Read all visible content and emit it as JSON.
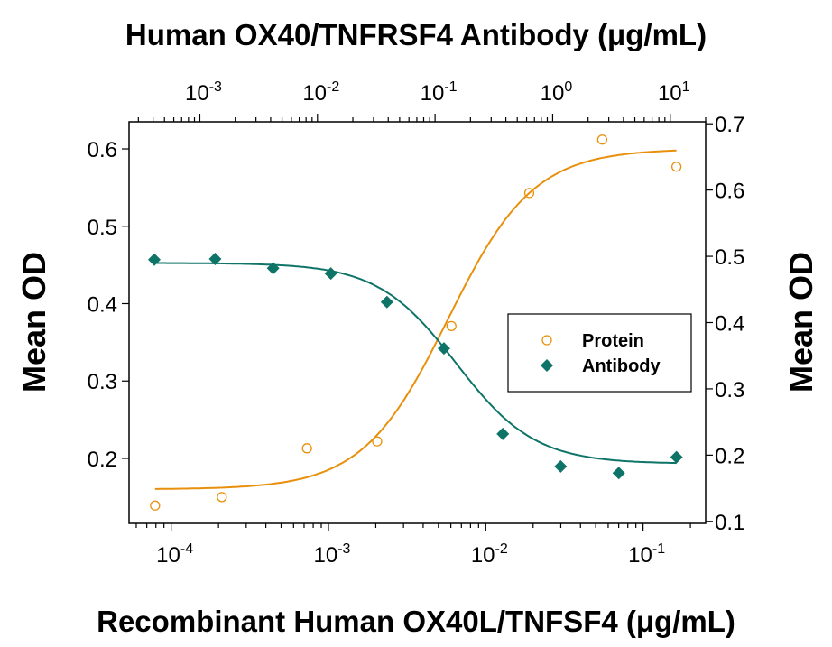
{
  "chart_data": {
    "type": "scatter",
    "title_top": "Human OX40/TNFRSF4 Antibody (μg/mL)",
    "xlabel_bottom": "Recombinant Human OX40L/TNFSF4 (μg/mL)",
    "ylabel_left": "Mean OD",
    "ylabel_right": "Mean OD",
    "x_bottom": {
      "scale": "log",
      "range": [
        5.4e-05,
        0.25
      ],
      "ticks": [
        0.0001,
        0.001,
        0.01,
        0.1
      ],
      "tick_labels": [
        [
          "10",
          "-4"
        ],
        [
          "10",
          "-3"
        ],
        [
          "10",
          "-2"
        ],
        [
          "10",
          "-1"
        ]
      ]
    },
    "x_top": {
      "scale": "log",
      "range": [
        0.00025,
        20
      ],
      "ticks": [
        0.001,
        0.01,
        0.1,
        1,
        10
      ],
      "tick_labels": [
        [
          "10",
          "-3"
        ],
        [
          "10",
          "-2"
        ],
        [
          "10",
          "-1"
        ],
        [
          "10",
          "0"
        ],
        [
          "10",
          "1"
        ]
      ]
    },
    "y_left": {
      "range": [
        0.116,
        0.635
      ],
      "ticks": [
        0.2,
        0.3,
        0.4,
        0.5,
        0.6
      ],
      "tick_labels": [
        "0.2",
        "0.3",
        "0.4",
        "0.5",
        "0.6"
      ]
    },
    "y_right": {
      "range": [
        0.097,
        0.703
      ],
      "ticks": [
        0.1,
        0.2,
        0.3,
        0.4,
        0.5,
        0.6,
        0.7
      ],
      "tick_labels": [
        "0.1",
        "0.2",
        "0.3",
        "0.4",
        "0.5",
        "0.6",
        "0.7"
      ]
    },
    "grid": false,
    "legend": {
      "placement": "center-right",
      "entries": [
        "Protein",
        "Antibody"
      ]
    },
    "series": [
      {
        "name": "Protein",
        "x_axis": "bottom",
        "y_axis": "left",
        "marker": "open-circle",
        "color": "#E8900C",
        "x": [
          7.9e-05,
          0.00021,
          0.00073,
          0.00204,
          0.00605,
          0.0189,
          0.055,
          0.163
        ],
        "y": [
          0.139,
          0.15,
          0.213,
          0.222,
          0.371,
          0.543,
          0.612,
          0.577
        ]
      },
      {
        "name": "Antibody",
        "x_axis": "top",
        "y_axis": "right",
        "marker": "filled-diamond",
        "color": "#0E7468",
        "x": [
          0.00041,
          0.00135,
          0.0042,
          0.013,
          0.039,
          0.119,
          0.377,
          1.17,
          3.65,
          11.3
        ],
        "y": [
          0.495,
          0.496,
          0.482,
          0.474,
          0.431,
          0.361,
          0.232,
          0.183,
          0.173,
          0.197
        ]
      }
    ]
  }
}
